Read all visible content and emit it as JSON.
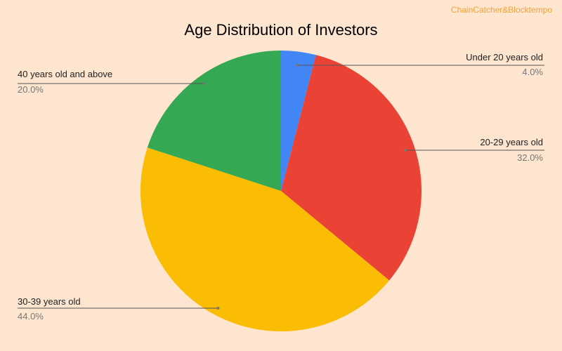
{
  "watermark": "ChainCatcher&Blocktempo",
  "chart_data": {
    "type": "pie",
    "title": "Age Distribution of Investors",
    "slices": [
      {
        "label": "Under 20 years old",
        "value": 4.0,
        "display": "4.0%",
        "color": "#4285f4"
      },
      {
        "label": "20-29 years old",
        "value": 32.0,
        "display": "32.0%",
        "color": "#ea4335"
      },
      {
        "label": "30-39 years old",
        "value": 44.0,
        "display": "44.0%",
        "color": "#fbbc04"
      },
      {
        "label": "40 years old and above",
        "value": 20.0,
        "display": "20.0%",
        "color": "#34a853"
      }
    ],
    "start_angle": "12 o'clock",
    "direction": "clockwise"
  }
}
